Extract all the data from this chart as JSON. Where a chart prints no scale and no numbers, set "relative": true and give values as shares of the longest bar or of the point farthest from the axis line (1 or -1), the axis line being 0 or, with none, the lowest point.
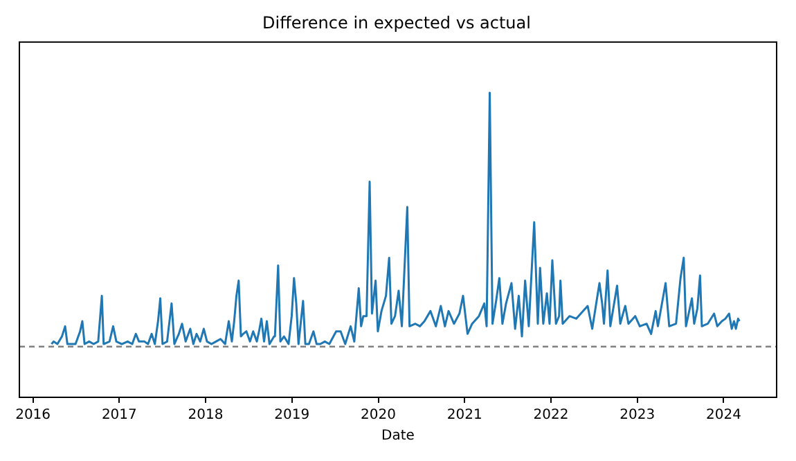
{
  "chart_data": {
    "type": "line",
    "title": "Difference in expected vs actual",
    "xlabel": "Date",
    "relative": true,
    "grid": false,
    "legend": false,
    "xlim": [
      2015.843,
      2024.614
    ],
    "xticks": [
      2016,
      2017,
      2018,
      2019,
      2020,
      2021,
      2022,
      2023,
      2024
    ],
    "ref_lines": [
      {
        "axis": "y",
        "value": 0,
        "color": "#808080",
        "line_style": "dashed"
      }
    ],
    "series": [
      {
        "color": "#1f77b4",
        "x": [
          2016.215,
          2016.241,
          2016.283,
          2016.336,
          2016.373,
          2016.399,
          2016.493,
          2016.546,
          2016.572,
          2016.598,
          2016.651,
          2016.703,
          2016.756,
          2016.798,
          2016.819,
          2016.887,
          2016.929,
          2016.966,
          2017.029,
          2017.097,
          2017.15,
          2017.192,
          2017.228,
          2017.291,
          2017.333,
          2017.375,
          2017.412,
          2017.449,
          2017.475,
          2017.501,
          2017.554,
          2017.606,
          2017.638,
          2017.69,
          2017.727,
          2017.769,
          2017.822,
          2017.858,
          2017.895,
          2017.937,
          2017.979,
          2018.016,
          2018.068,
          2018.121,
          2018.173,
          2018.226,
          2018.268,
          2018.304,
          2018.331,
          2018.357,
          2018.383,
          2018.409,
          2018.436,
          2018.472,
          2018.514,
          2018.551,
          2018.593,
          2018.619,
          2018.646,
          2018.677,
          2018.709,
          2018.74,
          2018.793,
          2018.803,
          2018.84,
          2018.866,
          2018.908,
          2018.961,
          2018.997,
          2019.024,
          2019.05,
          2019.076,
          2019.129,
          2019.155,
          2019.197,
          2019.249,
          2019.286,
          2019.328,
          2019.381,
          2019.433,
          2019.512,
          2019.564,
          2019.617,
          2019.68,
          2019.722,
          2019.774,
          2019.801,
          2019.827,
          2019.864,
          2019.9,
          2019.927,
          2019.969,
          2019.995,
          2020.037,
          2020.089,
          2020.126,
          2020.152,
          2020.194,
          2020.236,
          2020.273,
          2020.336,
          2020.362,
          2020.43,
          2020.483,
          2020.535,
          2020.604,
          2020.667,
          2020.724,
          2020.772,
          2020.814,
          2020.877,
          2020.94,
          2020.982,
          2021.034,
          2021.087,
          2021.166,
          2021.228,
          2021.255,
          2021.291,
          2021.323,
          2021.365,
          2021.402,
          2021.438,
          2021.48,
          2021.543,
          2021.585,
          2021.627,
          2021.664,
          2021.701,
          2021.743,
          2021.806,
          2021.848,
          2021.874,
          2021.911,
          2021.953,
          2021.984,
          2022.016,
          2022.058,
          2022.094,
          2022.11,
          2022.136,
          2022.215,
          2022.294,
          2022.346,
          2022.425,
          2022.478,
          2022.562,
          2022.593,
          2022.614,
          2022.656,
          2022.688,
          2022.766,
          2022.803,
          2022.835,
          2022.861,
          2022.898,
          2022.976,
          2023.029,
          2023.108,
          2023.16,
          2023.213,
          2023.239,
          2023.328,
          2023.37,
          2023.449,
          2023.501,
          2023.538,
          2023.564,
          2023.633,
          2023.659,
          2023.696,
          2023.727,
          2023.748,
          2023.816,
          2023.89,
          2023.927,
          2023.98,
          2024.021,
          2024.063,
          2024.094,
          2024.121,
          2024.142,
          2024.168,
          2024.184
        ],
        "values": [
          0.01,
          0.02,
          0.01,
          0.04,
          0.08,
          0.01,
          0.01,
          0.06,
          0.1,
          0.01,
          0.02,
          0.01,
          0.02,
          0.2,
          0.01,
          0.02,
          0.08,
          0.02,
          0.01,
          0.02,
          0.01,
          0.05,
          0.02,
          0.02,
          0.01,
          0.05,
          0.01,
          0.1,
          0.19,
          0.01,
          0.02,
          0.17,
          0.01,
          0.05,
          0.09,
          0.02,
          0.07,
          0.01,
          0.05,
          0.02,
          0.07,
          0.02,
          0.01,
          0.02,
          0.03,
          0.01,
          0.1,
          0.02,
          0.1,
          0.2,
          0.26,
          0.04,
          0.05,
          0.06,
          0.02,
          0.06,
          0.02,
          0.06,
          0.11,
          0.02,
          0.1,
          0.01,
          0.04,
          0.04,
          0.32,
          0.02,
          0.04,
          0.01,
          0.12,
          0.27,
          0.17,
          0.01,
          0.18,
          0.01,
          0.01,
          0.06,
          0.01,
          0.01,
          0.02,
          0.01,
          0.06,
          0.06,
          0.01,
          0.08,
          0.02,
          0.23,
          0.08,
          0.12,
          0.12,
          0.65,
          0.13,
          0.26,
          0.06,
          0.14,
          0.2,
          0.35,
          0.09,
          0.12,
          0.22,
          0.08,
          0.55,
          0.08,
          0.09,
          0.08,
          0.1,
          0.14,
          0.08,
          0.16,
          0.08,
          0.14,
          0.09,
          0.13,
          0.2,
          0.05,
          0.09,
          0.12,
          0.17,
          0.08,
          1,
          0.09,
          0.18,
          0.27,
          0.09,
          0.17,
          0.25,
          0.07,
          0.2,
          0.04,
          0.26,
          0.08,
          0.49,
          0.09,
          0.31,
          0.09,
          0.21,
          0.09,
          0.34,
          0.09,
          0.12,
          0.26,
          0.09,
          0.12,
          0.11,
          0.13,
          0.16,
          0.07,
          0.25,
          0.17,
          0.09,
          0.3,
          0.08,
          0.24,
          0.09,
          0.13,
          0.16,
          0.09,
          0.12,
          0.08,
          0.09,
          0.05,
          0.14,
          0.08,
          0.25,
          0.08,
          0.09,
          0.27,
          0.35,
          0.08,
          0.19,
          0.09,
          0.15,
          0.28,
          0.08,
          0.09,
          0.13,
          0.08,
          0.1,
          0.11,
          0.13,
          0.07,
          0.1,
          0.07,
          0.11,
          0.1
        ]
      }
    ]
  }
}
